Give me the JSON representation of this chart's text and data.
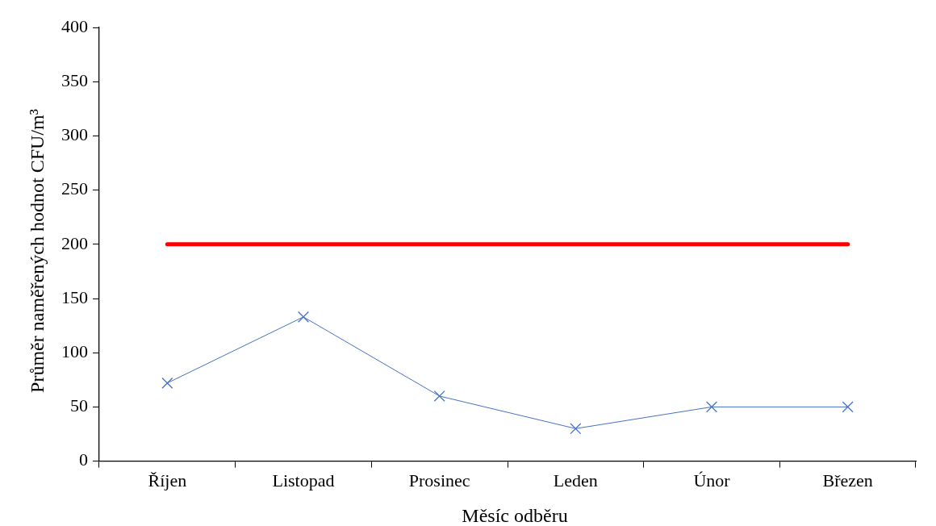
{
  "chart_data": {
    "type": "line",
    "xlabel": "Měsíc odběru",
    "ylabel": "Průměr naměřených hodnot CFU/m³",
    "categories": [
      "Říjen",
      "Listopad",
      "Prosinec",
      "Leden",
      "Únor",
      "Březen"
    ],
    "series": [
      {
        "color": "#4472c4",
        "marker": "cross",
        "values": [
          72,
          133,
          60,
          30,
          50,
          50
        ]
      },
      {
        "color": "#ff0000",
        "marker": "none",
        "values": [
          200,
          200,
          200,
          200,
          200,
          200
        ]
      }
    ],
    "ylim": [
      0,
      400
    ],
    "yticks": [
      0,
      50,
      100,
      150,
      200,
      250,
      300,
      350,
      400
    ],
    "grid": false,
    "legend": false
  }
}
